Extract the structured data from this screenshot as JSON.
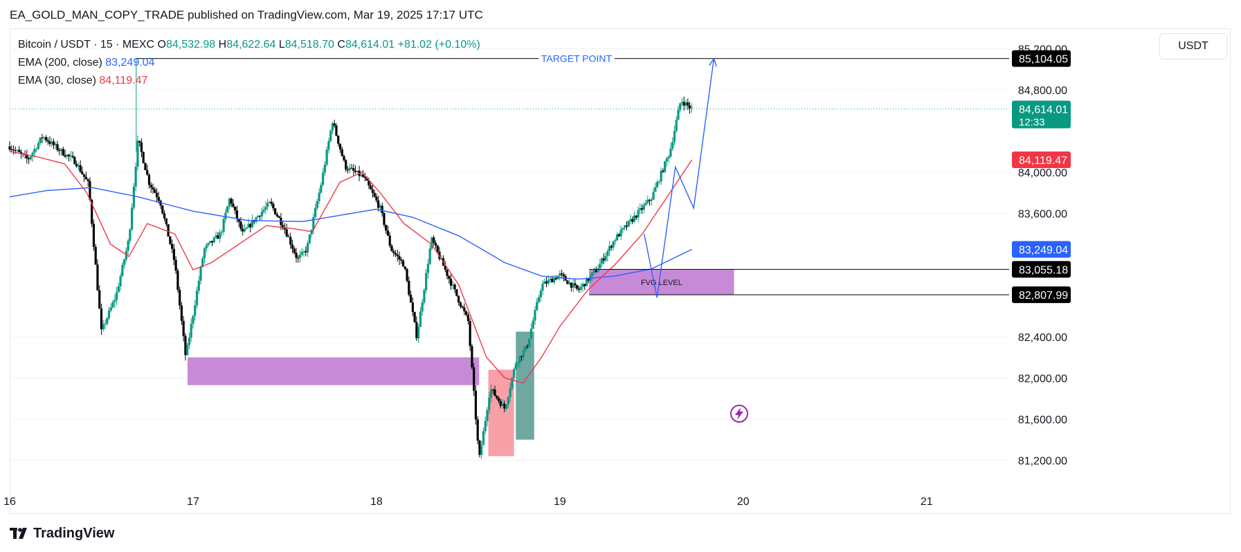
{
  "header": {
    "publish_line": "EA_GOLD_MAN_COPY_TRADE published on TradingView.com, Mar 19, 2025 17:17 UTC"
  },
  "legend": {
    "symbol": "Bitcoin / USDT · 15 · MEXC",
    "o_label": "O",
    "o_value": "84,532.98",
    "h_label": "H",
    "h_value": "84,622.64",
    "l_label": "L",
    "l_value": "84,518.70",
    "c_label": "C",
    "c_value": "84,614.01",
    "change": "+81.02 (+0.10%)",
    "ema200_label": "EMA (200, close)",
    "ema200_value": "83,249.04",
    "ema30_label": "EMA (30, close)",
    "ema30_value": "84,119.47"
  },
  "currency_button": "USDT",
  "footer": {
    "brand": "TradingView"
  },
  "chart_data": {
    "type": "candlestick",
    "x_ticks": [
      "16",
      "17",
      "18",
      "19",
      "20",
      "21"
    ],
    "x_tick_days": [
      16,
      17,
      18,
      19,
      20,
      21
    ],
    "y_ticks": [
      "85,200.00",
      "84,800.00",
      "84,000.00",
      "83,600.00",
      "82,400.00",
      "82,000.00",
      "81,600.00",
      "81,200.00"
    ],
    "y_tick_values": [
      85200,
      84800,
      84000,
      83600,
      82400,
      82000,
      81600,
      81200
    ],
    "y_range": [
      80900,
      85350
    ],
    "x_range_days": [
      16.0,
      21.45
    ],
    "candle_interval_minutes": 15,
    "price_path": [
      [
        16.0,
        84250
      ],
      [
        16.1,
        84120
      ],
      [
        16.18,
        84350
      ],
      [
        16.26,
        84230
      ],
      [
        16.36,
        84100
      ],
      [
        16.43,
        83880
      ],
      [
        16.5,
        82450
      ],
      [
        16.58,
        82800
      ],
      [
        16.65,
        83350
      ],
      [
        16.7,
        84320
      ],
      [
        16.76,
        83900
      ],
      [
        16.82,
        83720
      ],
      [
        16.9,
        83120
      ],
      [
        16.96,
        82200
      ],
      [
        17.06,
        83250
      ],
      [
        17.15,
        83400
      ],
      [
        17.2,
        83750
      ],
      [
        17.27,
        83400
      ],
      [
        17.34,
        83550
      ],
      [
        17.42,
        83700
      ],
      [
        17.5,
        83450
      ],
      [
        17.57,
        83150
      ],
      [
        17.62,
        83250
      ],
      [
        17.7,
        83900
      ],
      [
        17.76,
        84500
      ],
      [
        17.83,
        84050
      ],
      [
        17.93,
        83950
      ],
      [
        18.02,
        83650
      ],
      [
        18.08,
        83250
      ],
      [
        18.15,
        83100
      ],
      [
        18.22,
        82400
      ],
      [
        18.3,
        83350
      ],
      [
        18.4,
        82950
      ],
      [
        18.5,
        82550
      ],
      [
        18.56,
        81200
      ],
      [
        18.62,
        81900
      ],
      [
        18.7,
        81700
      ],
      [
        18.76,
        82150
      ],
      [
        18.82,
        82300
      ],
      [
        18.9,
        82900
      ],
      [
        19.0,
        83000
      ],
      [
        19.1,
        82850
      ],
      [
        19.2,
        83050
      ],
      [
        19.3,
        83350
      ],
      [
        19.4,
        83550
      ],
      [
        19.5,
        83750
      ],
      [
        19.6,
        84200
      ],
      [
        19.66,
        84700
      ],
      [
        19.72,
        84614
      ]
    ],
    "ema200_path": [
      [
        16.0,
        83760
      ],
      [
        16.2,
        83820
      ],
      [
        16.45,
        83850
      ],
      [
        16.7,
        83760
      ],
      [
        17.0,
        83620
      ],
      [
        17.3,
        83530
      ],
      [
        17.6,
        83520
      ],
      [
        17.8,
        83580
      ],
      [
        18.0,
        83640
      ],
      [
        18.2,
        83560
      ],
      [
        18.45,
        83380
      ],
      [
        18.7,
        83120
      ],
      [
        18.9,
        82990
      ],
      [
        19.1,
        82960
      ],
      [
        19.3,
        82990
      ],
      [
        19.5,
        83060
      ],
      [
        19.72,
        83249
      ]
    ],
    "ema30_path": [
      [
        16.0,
        84200
      ],
      [
        16.15,
        84150
      ],
      [
        16.3,
        84080
      ],
      [
        16.42,
        83800
      ],
      [
        16.55,
        83300
      ],
      [
        16.65,
        83180
      ],
      [
        16.75,
        83500
      ],
      [
        16.9,
        83400
      ],
      [
        17.0,
        83050
      ],
      [
        17.1,
        83120
      ],
      [
        17.25,
        83300
      ],
      [
        17.4,
        83480
      ],
      [
        17.55,
        83450
      ],
      [
        17.65,
        83420
      ],
      [
        17.8,
        83900
      ],
      [
        17.92,
        84000
      ],
      [
        18.02,
        83800
      ],
      [
        18.15,
        83500
      ],
      [
        18.3,
        83300
      ],
      [
        18.45,
        82900
      ],
      [
        18.6,
        82200
      ],
      [
        18.7,
        82000
      ],
      [
        18.8,
        81950
      ],
      [
        18.9,
        82200
      ],
      [
        19.0,
        82500
      ],
      [
        19.15,
        82850
      ],
      [
        19.3,
        83100
      ],
      [
        19.45,
        83400
      ],
      [
        19.6,
        83800
      ],
      [
        19.72,
        84119
      ]
    ],
    "projection_path": [
      [
        19.46,
        83400
      ],
      [
        19.53,
        82780
      ],
      [
        19.63,
        84050
      ],
      [
        19.73,
        83650
      ],
      [
        19.84,
        85104
      ]
    ],
    "target_line": {
      "label": "TARGET POINT",
      "value": 85104.05,
      "from_day": 16.69
    },
    "fvg_zone": {
      "label": "FVG LEVEL",
      "from_day": 19.16,
      "to_day": 19.95,
      "top": 83055.18,
      "bottom": 82807.99
    },
    "demand_zone": {
      "from_day": 16.97,
      "to_day": 18.56,
      "top": 82200,
      "bottom": 81930
    },
    "red_box": {
      "from_day": 18.61,
      "to_day": 18.75,
      "top": 82080,
      "bottom": 81240
    },
    "teal_box": {
      "from_day": 18.76,
      "to_day": 18.86,
      "top": 82450,
      "bottom": 81400
    },
    "last_price_line": 84614.01,
    "price_labels": [
      {
        "text": "85,104.05",
        "value": 85104.05,
        "color": "#000000"
      },
      {
        "text": "84,614.01",
        "value": 84614.01,
        "color": "#089981",
        "sub": "12:33"
      },
      {
        "text": "84,119.47",
        "value": 84119.47,
        "color": "#f23645"
      },
      {
        "text": "83,249.04",
        "value": 83249.04,
        "color": "#2962ff"
      },
      {
        "text": "83,055.18",
        "value": 83055.18,
        "color": "#000000"
      },
      {
        "text": "82,807.99",
        "value": 82807.99,
        "color": "#000000"
      }
    ],
    "colors": {
      "up": "#089981",
      "down": "#000000",
      "ema200": "#2962ff",
      "ema30": "#f23645",
      "zone": "#c78ad6",
      "red_box": "#f7a0a8",
      "teal_box": "#6fa8a0",
      "projection": "#2962ff",
      "grid": "#f0f3fa",
      "axis_text": "#131722"
    }
  }
}
